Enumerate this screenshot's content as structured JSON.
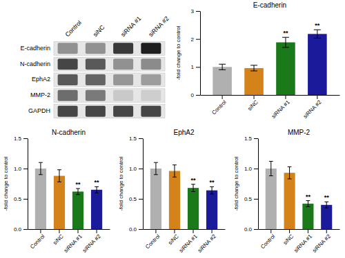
{
  "chart_data": [
    {
      "type": "heatmap",
      "x": [
        "Control",
        "siNC",
        "siRNA #1",
        "siRNA #2"
      ],
      "y": [
        "E-cadherin",
        "N-cadherin",
        "EphA2",
        "MMP-2",
        "GAPDH"
      ],
      "values": [
        [
          0.52,
          0.52,
          0.82,
          0.9
        ],
        [
          0.78,
          0.72,
          0.52,
          0.54
        ],
        [
          0.72,
          0.68,
          0.5,
          0.48
        ],
        [
          0.65,
          0.6,
          0.32,
          0.3
        ],
        [
          0.78,
          0.78,
          0.78,
          0.78
        ]
      ]
    },
    {
      "type": "bar",
      "title": "E-cadherin",
      "y_label": "-fold change to control",
      "categories": [
        "Control",
        "siNC",
        "siRNA #1",
        "siRNA #2"
      ],
      "values": [
        1.0,
        0.96,
        1.88,
        2.18
      ],
      "errors": [
        0.1,
        0.1,
        0.18,
        0.15
      ],
      "colors": [
        "#b0b0b0",
        "#d4821a",
        "#1a7a1a",
        "#1a1a9a"
      ],
      "ylim": [
        0,
        3.0
      ],
      "yticks": [
        0,
        1,
        2,
        3
      ],
      "annotations": [
        {
          "text": "**",
          "category": "siRNA #1"
        },
        {
          "text": "**",
          "category": "siRNA #2"
        }
      ]
    },
    {
      "type": "bar",
      "title": "N-cadherin",
      "y_label": "-fold change to control",
      "categories": [
        "Control",
        "siNC",
        "siRNA #1",
        "siRNA #2"
      ],
      "values": [
        1.0,
        0.88,
        0.62,
        0.65
      ],
      "errors": [
        0.1,
        0.1,
        0.05,
        0.05
      ],
      "colors": [
        "#b0b0b0",
        "#d4821a",
        "#1a7a1a",
        "#1a1a9a"
      ],
      "ylim": [
        0,
        1.5
      ],
      "yticks": [
        {
          "value": 0.0,
          "label": "0.0"
        },
        0.5,
        {
          "value": 1.0,
          "label": "1.0"
        },
        1.5
      ],
      "annotations": [
        {
          "text": "**",
          "category": "siRNA #1"
        },
        {
          "text": "**",
          "category": "siRNA #2"
        }
      ]
    },
    {
      "type": "bar",
      "title": "EphA2",
      "y_label": "-fold change to control",
      "categories": [
        "Control",
        "siNC",
        "siRNA #1",
        "siRNA #2"
      ],
      "values": [
        1.0,
        0.96,
        0.68,
        0.64
      ],
      "errors": [
        0.1,
        0.1,
        0.06,
        0.06
      ],
      "colors": [
        "#b0b0b0",
        "#d4821a",
        "#1a7a1a",
        "#1a1a9a"
      ],
      "ylim": [
        0,
        1.5
      ],
      "yticks": [
        {
          "value": 0.0,
          "label": "0.0"
        },
        0.5,
        {
          "value": 1.0,
          "label": "1.0"
        },
        1.5
      ],
      "annotations": [
        {
          "text": "**",
          "category": "siRNA #1"
        },
        {
          "text": "**",
          "category": "siRNA #2"
        }
      ]
    },
    {
      "type": "bar",
      "title": "MMP-2",
      "y_label": "-fold change to control",
      "categories": [
        "Control",
        "siNC",
        "siRNA #1",
        "siRNA #2"
      ],
      "values": [
        1.0,
        0.93,
        0.42,
        0.4
      ],
      "errors": [
        0.12,
        0.1,
        0.05,
        0.05
      ],
      "colors": [
        "#b0b0b0",
        "#d4821a",
        "#1a7a1a",
        "#1a1a9a"
      ],
      "ylim": [
        0,
        1.5
      ],
      "yticks": [
        {
          "value": 0.0,
          "label": "0.0"
        },
        0.5,
        {
          "value": 1.0,
          "label": "1.0"
        },
        1.5
      ],
      "annotations": [
        {
          "text": "**",
          "category": "siRNA #1"
        },
        {
          "text": "**",
          "category": "siRNA #2"
        }
      ]
    }
  ]
}
